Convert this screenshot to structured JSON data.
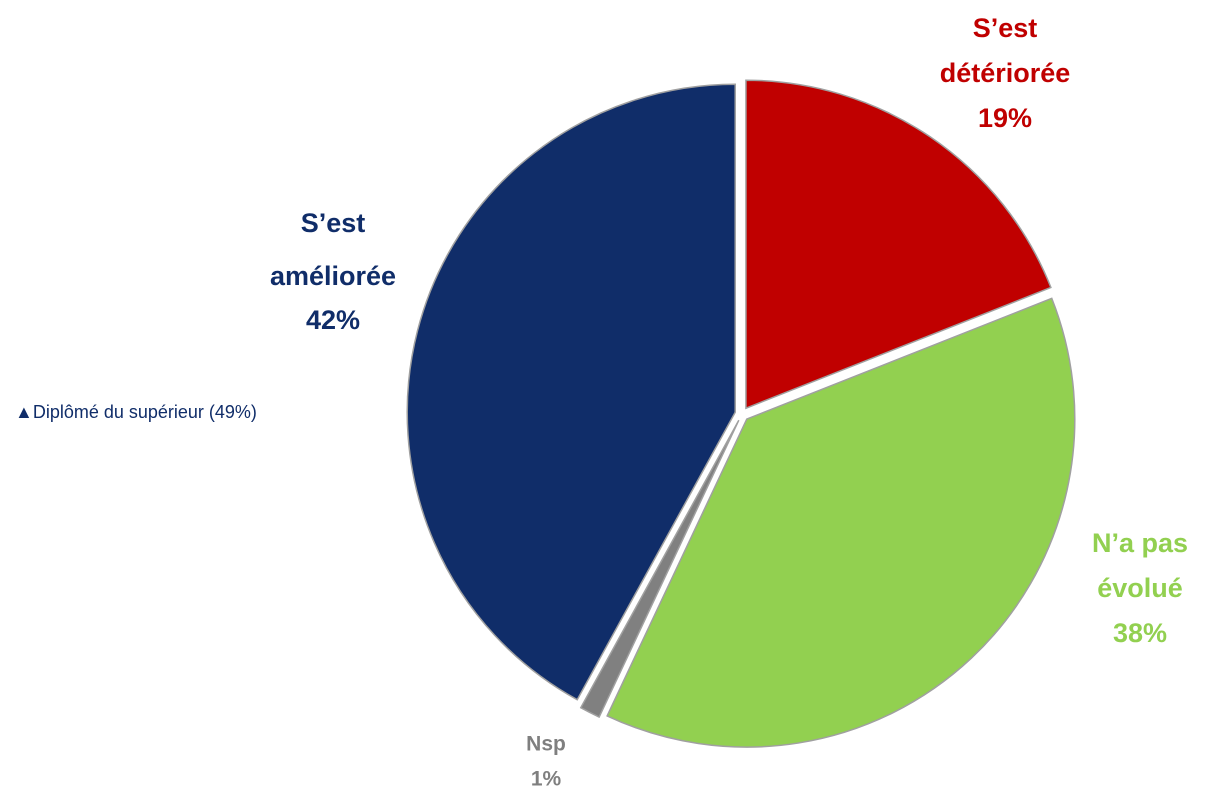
{
  "chart_data": {
    "type": "pie",
    "categories": [
      [
        "S’est",
        "détériorée"
      ],
      [
        "N’a pas",
        "évolué"
      ],
      [
        "Nsp"
      ],
      [
        "S’est",
        "améliorée"
      ]
    ],
    "values": [
      19,
      38,
      1,
      42
    ],
    "value_labels": [
      "19%",
      "38%",
      "1%",
      "42%"
    ],
    "colors": [
      "#c00000",
      "#92d050",
      "#808080",
      "#102d69"
    ],
    "label_colors": [
      "#c00000",
      "#92d050",
      "#7f7f7f",
      "#102d69"
    ],
    "annotation": "▲Diplômé du supérieur (49%)"
  }
}
